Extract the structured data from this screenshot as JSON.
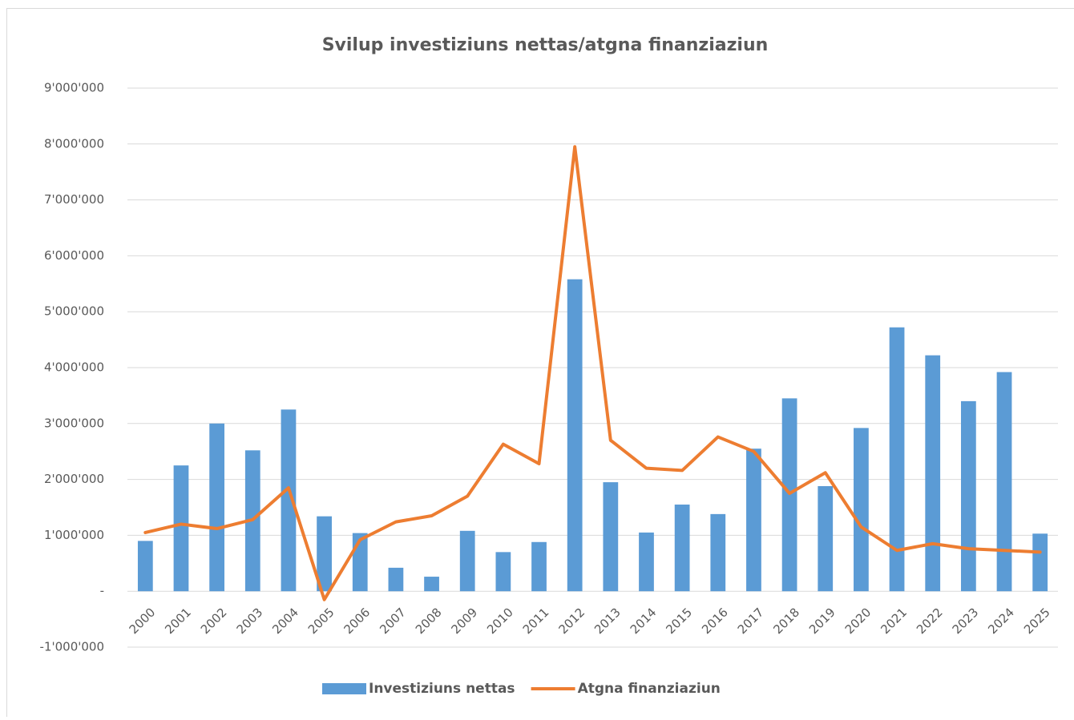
{
  "chart_data": {
    "type": "bar_line",
    "title": "Svilup investiziuns nettas/atgna finanziaziun",
    "categories": [
      "2000",
      "2001",
      "2002",
      "2003",
      "2004",
      "2005",
      "2006",
      "2007",
      "2008",
      "2009",
      "2010",
      "2011",
      "2012",
      "2013",
      "2014",
      "2015",
      "2016",
      "2017",
      "2018",
      "2019",
      "2020",
      "2021",
      "2022",
      "2023",
      "2024",
      "2025"
    ],
    "series": [
      {
        "name": "Investiziuns nettas",
        "type": "bar",
        "color": "#5b9bd5",
        "values": [
          900000,
          2250000,
          3000000,
          2520000,
          3250000,
          1340000,
          1040000,
          420000,
          260000,
          1080000,
          700000,
          880000,
          5580000,
          1950000,
          1050000,
          1550000,
          1380000,
          2550000,
          3450000,
          1880000,
          2920000,
          4720000,
          4220000,
          3400000,
          3920000,
          1030000
        ]
      },
      {
        "name": "Atgna finanziaziun",
        "type": "line",
        "color": "#ed7d31",
        "values": [
          1050000,
          1200000,
          1120000,
          1280000,
          1850000,
          -150000,
          920000,
          1240000,
          1350000,
          1700000,
          2630000,
          2280000,
          7950000,
          2700000,
          2200000,
          2160000,
          2760000,
          2500000,
          1750000,
          2120000,
          1150000,
          730000,
          850000,
          760000,
          730000,
          700000
        ]
      }
    ],
    "ylim": [
      -1000000,
      9000000
    ],
    "yticks": [
      {
        "value": -1000000,
        "label": "-1'000'000"
      },
      {
        "value": 0,
        "label": "-"
      },
      {
        "value": 1000000,
        "label": "1'000'000"
      },
      {
        "value": 2000000,
        "label": "2'000'000"
      },
      {
        "value": 3000000,
        "label": "3'000'000"
      },
      {
        "value": 4000000,
        "label": "4'000'000"
      },
      {
        "value": 5000000,
        "label": "5'000'000"
      },
      {
        "value": 6000000,
        "label": "6'000'000"
      },
      {
        "value": 7000000,
        "label": "7'000'000"
      },
      {
        "value": 8000000,
        "label": "8'000'000"
      },
      {
        "value": 9000000,
        "label": "9'000'000"
      }
    ],
    "grid": true,
    "legend": "bottom"
  }
}
